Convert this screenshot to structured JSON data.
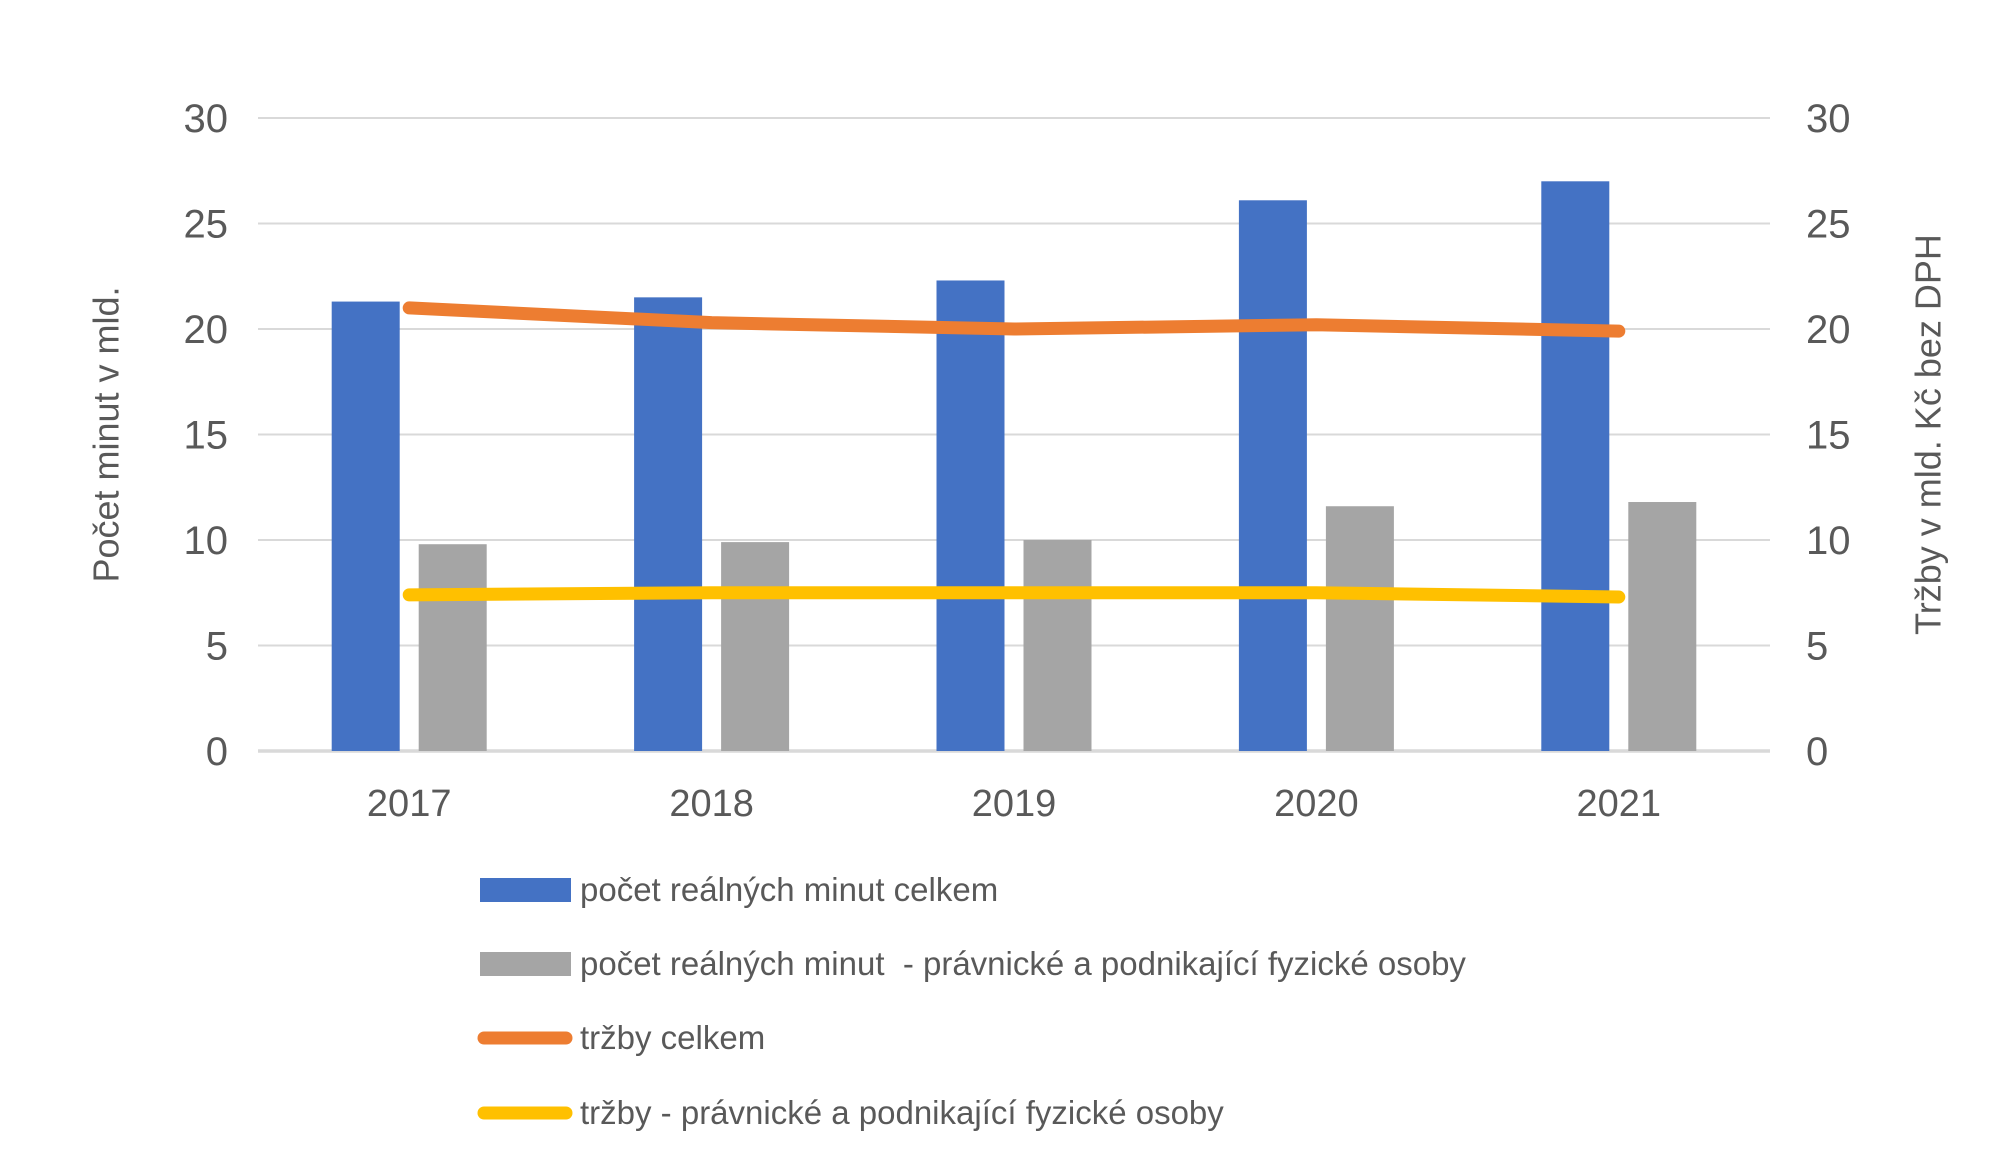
{
  "chart_data": {
    "type": "combo",
    "categories": [
      "2017",
      "2018",
      "2019",
      "2020",
      "2021"
    ],
    "series": [
      {
        "name": "počet reálných minut celkem",
        "kind": "bar",
        "axis": "left",
        "color": "#4472C4",
        "values": [
          21.3,
          21.5,
          22.3,
          26.1,
          27.0
        ]
      },
      {
        "name": "počet reálných minut  - právnické a podnikající fyzické osoby",
        "kind": "bar",
        "axis": "left",
        "color": "#A5A5A5",
        "values": [
          9.8,
          9.9,
          10.0,
          11.6,
          11.8
        ]
      },
      {
        "name": "tržby celkem",
        "kind": "line",
        "axis": "right",
        "color": "#ED7D31",
        "values": [
          21.0,
          20.3,
          20.0,
          20.2,
          19.9
        ]
      },
      {
        "name": "tržby - právnické a podnikající fyzické osoby",
        "kind": "line",
        "axis": "right",
        "color": "#FFC000",
        "values": [
          7.4,
          7.5,
          7.5,
          7.5,
          7.3
        ]
      }
    ],
    "left_axis": {
      "label": "Počet minut v mld.",
      "min": 0,
      "max": 30,
      "step": 5,
      "tick_labels": [
        "0",
        "5",
        "10",
        "15",
        "20",
        "25",
        "30"
      ]
    },
    "right_axis": {
      "label": "Tržby v mld. Kč bez DPH",
      "min": 0,
      "max": 30,
      "step": 5,
      "tick_labels": [
        "0",
        "5",
        "10",
        "15",
        "20",
        "25",
        "30"
      ]
    },
    "grid": true,
    "legend_position": "bottom-left",
    "colors": {
      "gridline": "#D9D9D9",
      "axis_line": "#D9D9D9",
      "text": "#595959",
      "background": "#FFFFFF"
    }
  }
}
